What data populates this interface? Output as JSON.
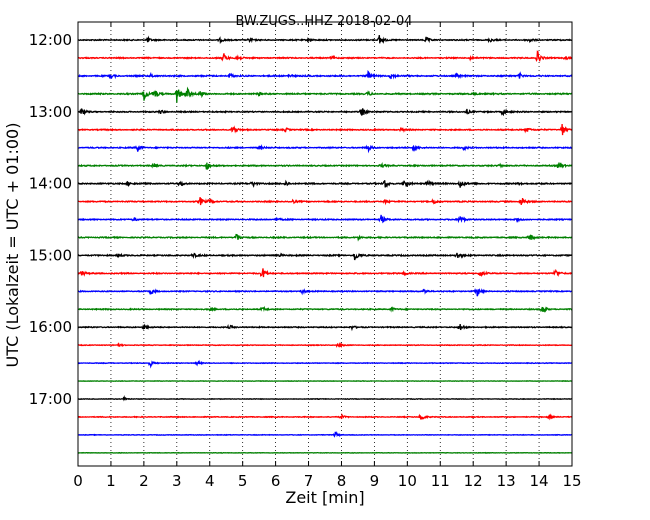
{
  "chart_data": {
    "type": "line",
    "title": "BW.ZUGS..HHZ 2018-02-04",
    "xlabel": "Zeit  [min]",
    "ylabel": "UTC (Lokalzeit = UTC + 01:00)",
    "xlim": [
      0,
      15
    ],
    "x_ticks": [
      "0",
      "1",
      "2",
      "3",
      "4",
      "5",
      "6",
      "7",
      "8",
      "9",
      "10",
      "11",
      "12",
      "13",
      "14",
      "15"
    ],
    "y_ticks": [
      "12:00",
      "13:00",
      "14:00",
      "15:00",
      "16:00",
      "17:00"
    ],
    "grid": "vertical dotted",
    "trace_colors": [
      "#000000",
      "#ff0000",
      "#0000ff",
      "#008000"
    ],
    "traces": [
      {
        "start": "12:00",
        "noise": 0.5,
        "events": [
          [
            2.1,
            0.4
          ],
          [
            4.3,
            0.3
          ],
          [
            5.2,
            0.3
          ],
          [
            7.0,
            0.3
          ],
          [
            9.15,
            0.9
          ],
          [
            10.55,
            0.5
          ],
          [
            12.5,
            0.3
          ],
          [
            13.7,
            0.3
          ]
        ]
      },
      {
        "start": "12:15",
        "noise": 0.5,
        "events": [
          [
            4.4,
            0.9
          ],
          [
            4.8,
            0.6
          ],
          [
            7.7,
            0.3
          ],
          [
            11.9,
            0.3
          ],
          [
            13.95,
            1.0
          ],
          [
            14.8,
            0.3
          ]
        ]
      },
      {
        "start": "12:30",
        "noise": 0.55,
        "events": [
          [
            1.0,
            0.3
          ],
          [
            2.2,
            0.3
          ],
          [
            4.6,
            0.4
          ],
          [
            6.4,
            0.3
          ],
          [
            8.8,
            0.7
          ],
          [
            9.5,
            0.5
          ],
          [
            11.5,
            0.3
          ],
          [
            13.4,
            0.4
          ]
        ]
      },
      {
        "start": "12:45",
        "noise": 0.55,
        "events": [
          [
            2.0,
            1.0
          ],
          [
            2.3,
            0.8
          ],
          [
            3.0,
            1.4
          ],
          [
            3.3,
            1.0
          ],
          [
            3.7,
            0.6
          ],
          [
            5.5,
            0.3
          ],
          [
            8.8,
            0.3
          ],
          [
            12.0,
            0.3
          ]
        ]
      },
      {
        "start": "13:00",
        "noise": 0.5,
        "events": [
          [
            0.1,
            0.8
          ],
          [
            2.5,
            0.3
          ],
          [
            8.6,
            0.8
          ],
          [
            11.8,
            0.4
          ],
          [
            12.9,
            0.6
          ]
        ]
      },
      {
        "start": "13:15",
        "noise": 0.5,
        "events": [
          [
            4.7,
            0.7
          ],
          [
            6.3,
            0.3
          ],
          [
            9.8,
            0.3
          ],
          [
            13.6,
            0.5
          ],
          [
            14.7,
            1.0
          ]
        ]
      },
      {
        "start": "13:30",
        "noise": 0.5,
        "events": [
          [
            1.8,
            0.6
          ],
          [
            5.5,
            0.3
          ],
          [
            8.8,
            0.5
          ],
          [
            10.2,
            0.5
          ],
          [
            11.7,
            0.3
          ]
        ]
      },
      {
        "start": "13:45",
        "noise": 0.5,
        "events": [
          [
            2.3,
            0.3
          ],
          [
            3.9,
            0.8
          ],
          [
            9.2,
            0.3
          ],
          [
            12.8,
            0.3
          ],
          [
            14.6,
            0.8
          ]
        ]
      },
      {
        "start": "14:00",
        "noise": 0.55,
        "events": [
          [
            1.5,
            0.3
          ],
          [
            3.1,
            0.5
          ],
          [
            5.3,
            0.5
          ],
          [
            6.3,
            0.4
          ],
          [
            9.3,
            0.9
          ],
          [
            9.9,
            0.6
          ],
          [
            10.6,
            0.5
          ],
          [
            11.6,
            0.8
          ],
          [
            13.4,
            0.3
          ]
        ]
      },
      {
        "start": "14:15",
        "noise": 0.5,
        "events": [
          [
            3.7,
            0.7
          ],
          [
            4.0,
            0.5
          ],
          [
            6.5,
            0.3
          ],
          [
            9.3,
            0.3
          ],
          [
            10.8,
            0.4
          ],
          [
            13.45,
            0.9
          ]
        ]
      },
      {
        "start": "14:30",
        "noise": 0.5,
        "events": [
          [
            1.7,
            0.3
          ],
          [
            6.0,
            0.3
          ],
          [
            9.2,
            0.7
          ],
          [
            11.6,
            0.6
          ],
          [
            13.3,
            0.3
          ]
        ]
      },
      {
        "start": "14:45",
        "noise": 0.5,
        "events": [
          [
            4.8,
            0.7
          ],
          [
            8.5,
            0.3
          ],
          [
            13.7,
            0.7
          ]
        ]
      },
      {
        "start": "15:00",
        "noise": 0.55,
        "events": [
          [
            1.2,
            0.3
          ],
          [
            3.5,
            0.3
          ],
          [
            6.1,
            0.3
          ],
          [
            8.4,
            0.9
          ],
          [
            11.5,
            0.6
          ]
        ]
      },
      {
        "start": "15:15",
        "noise": 0.5,
        "events": [
          [
            0.1,
            0.4
          ],
          [
            5.6,
            0.9
          ],
          [
            9.9,
            0.3
          ],
          [
            12.2,
            0.6
          ],
          [
            14.5,
            0.7
          ]
        ]
      },
      {
        "start": "15:30",
        "noise": 0.45,
        "events": [
          [
            2.2,
            0.6
          ],
          [
            6.8,
            0.3
          ],
          [
            10.5,
            0.4
          ],
          [
            12.1,
            0.9
          ]
        ]
      },
      {
        "start": "15:45",
        "noise": 0.45,
        "events": [
          [
            4.0,
            0.3
          ],
          [
            5.6,
            0.3
          ],
          [
            9.5,
            0.3
          ],
          [
            14.1,
            0.7
          ]
        ]
      },
      {
        "start": "16:00",
        "noise": 0.45,
        "events": [
          [
            2.0,
            0.4
          ],
          [
            4.6,
            0.3
          ],
          [
            8.3,
            0.3
          ],
          [
            11.6,
            0.6
          ]
        ]
      },
      {
        "start": "16:15",
        "noise": 0.3,
        "events": [
          [
            1.2,
            0.3
          ],
          [
            7.9,
            0.4
          ]
        ]
      },
      {
        "start": "16:30",
        "noise": 0.3,
        "events": [
          [
            2.2,
            0.5
          ],
          [
            3.6,
            0.3
          ]
        ]
      },
      {
        "start": "16:45",
        "noise": 0.2,
        "events": []
      },
      {
        "start": "17:00",
        "noise": 0.25,
        "events": [
          [
            1.4,
            0.3
          ]
        ]
      },
      {
        "start": "17:15",
        "noise": 0.35,
        "events": [
          [
            8.0,
            0.3
          ],
          [
            10.4,
            0.9
          ],
          [
            14.3,
            0.4
          ]
        ]
      },
      {
        "start": "17:30",
        "noise": 0.25,
        "events": [
          [
            7.8,
            0.5
          ]
        ]
      },
      {
        "start": "17:45",
        "noise": 0.2,
        "events": []
      }
    ]
  }
}
